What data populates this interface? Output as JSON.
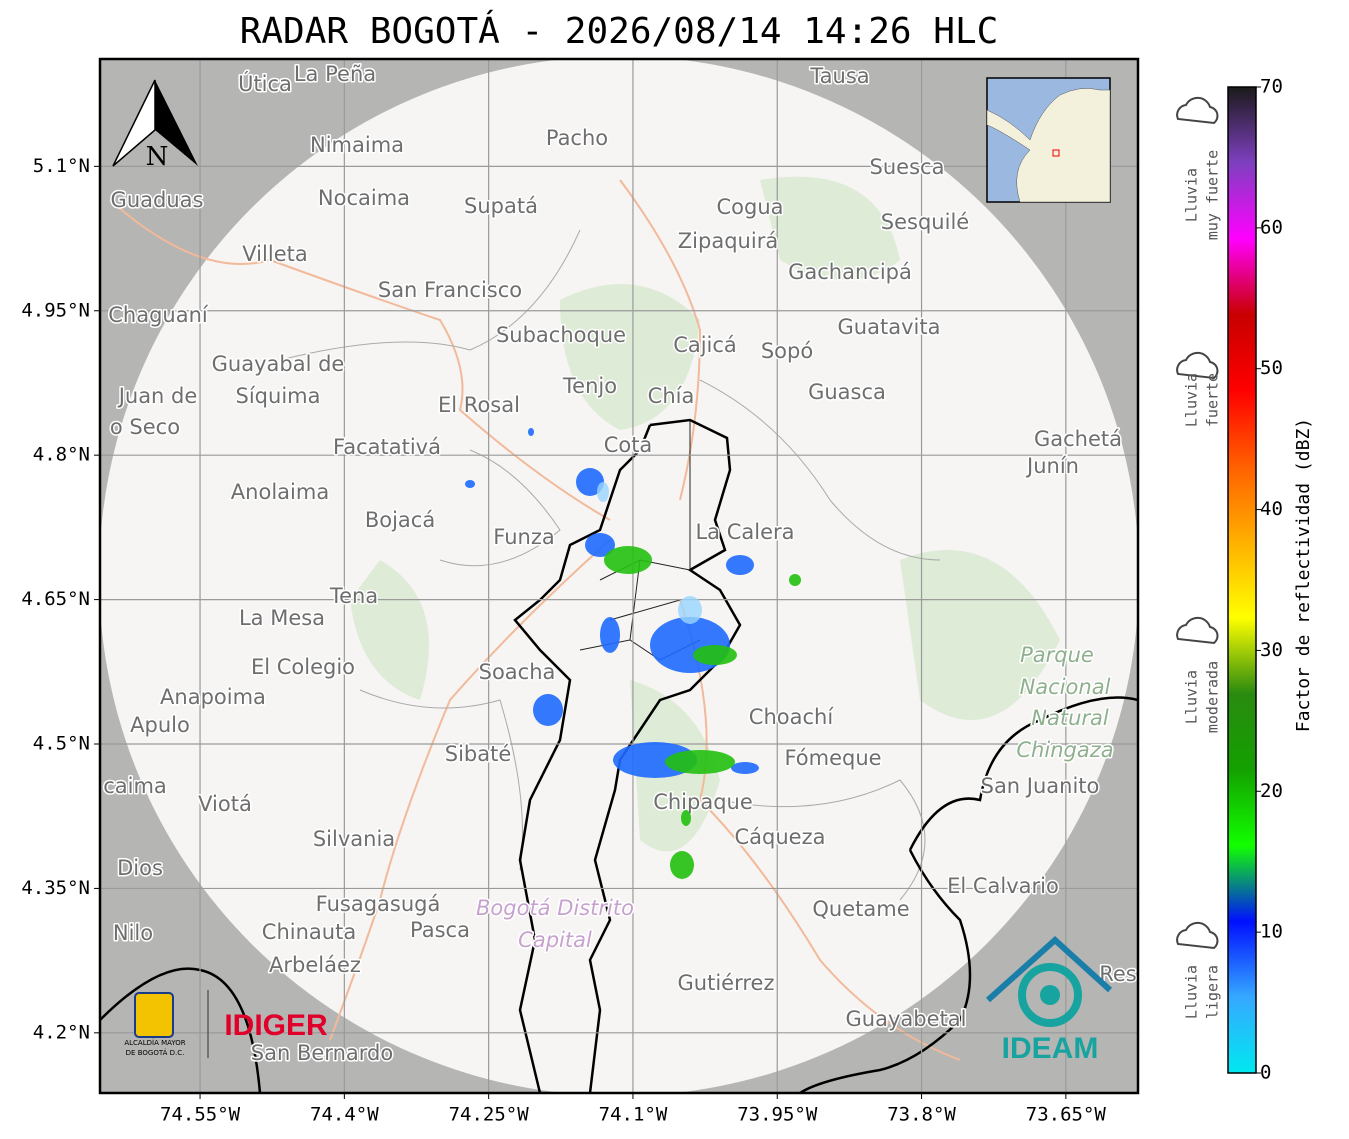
{
  "title": "RADAR BOGOTÁ - 2026/08/14 14:26 HLC",
  "map": {
    "xlim": [
      -74.654,
      -73.575
    ],
    "ylim": [
      4.1375,
      5.2115
    ],
    "grid": true,
    "xticks": [
      {
        "value": -74.55,
        "label": "74.55°W"
      },
      {
        "value": -74.4,
        "label": "74.4°W"
      },
      {
        "value": -74.25,
        "label": "74.25°W"
      },
      {
        "value": -74.1,
        "label": "74.1°W"
      },
      {
        "value": -73.95,
        "label": "73.95°W"
      },
      {
        "value": -73.8,
        "label": "73.8°W"
      },
      {
        "value": -73.65,
        "label": "73.65°W"
      }
    ],
    "yticks": [
      {
        "value": 5.1,
        "label": "5.1°N"
      },
      {
        "value": 4.95,
        "label": "4.95°N"
      },
      {
        "value": 4.8,
        "label": "4.8°N"
      },
      {
        "value": 4.65,
        "label": "4.65°N"
      },
      {
        "value": 4.5,
        "label": "4.5°N"
      },
      {
        "value": 4.35,
        "label": "4.35°N"
      },
      {
        "value": 4.2,
        "label": "4.2°N"
      }
    ],
    "places": [
      "Útica",
      "La Peña",
      "Tausa",
      "Pacho",
      "Nimaima",
      "Suesca",
      "Guaduas",
      "Nocaima",
      "Supatá",
      "Cogua",
      "Sesquilé",
      "Zipaquirá",
      "Villeta",
      "Gachancipá",
      "San Francisco",
      "Chaguaní",
      "Guatavita",
      "Subachoque",
      "Cajicá",
      "Sopó",
      "Guayabal de",
      "Síquima",
      "Tenjo",
      "Chía",
      "Guasca",
      "Juan de",
      "o Seco",
      "El Rosal",
      "Facatativá",
      "Cota",
      "Gachetá",
      "Junín",
      "Anolaima",
      "Bojacá",
      "Funza",
      "La Calera",
      "Tena",
      "La Mesa",
      "El Colegio",
      "Soacha",
      "Anapoima",
      "Apulo",
      "Choachí",
      "Sibaté",
      "Fómeque",
      "San Juanito",
      "caima",
      "Viotá",
      "Chipaque",
      "Silvania",
      "Cáqueza",
      "Dios",
      "El Calvario",
      "Fusagasugá",
      "Quetame",
      "Nilo",
      "Chinauta",
      "Pasca",
      "Arbeláez",
      "Gutiérrez",
      "Res",
      "Guayabetal",
      "San Bernardo"
    ],
    "park": [
      "Parque",
      "Nacional",
      "Natural",
      "Chingaza"
    ],
    "district": [
      "Bogotá Distrito",
      "Capital"
    ],
    "north": "N"
  },
  "colorbar": {
    "label": "Factor de reflectividad (dBZ)",
    "lim": [
      0,
      70
    ],
    "ticks": [
      0,
      10,
      20,
      30,
      40,
      50,
      60,
      70
    ],
    "colors": [
      "#00e8f0",
      "#36a8ff",
      "#0010ff",
      "#12ff00",
      "#14a000",
      "#2a8a10",
      "#ffff00",
      "#ffb000",
      "#ff6000",
      "#ff0000",
      "#c80000",
      "#ff00ff",
      "#7e40c0",
      "#1a1a1a"
    ]
  },
  "rain_legend": [
    [
      "Lluvia",
      "muy fuerte"
    ],
    [
      "Lluvia",
      "fuerte"
    ],
    [
      "Lluvia",
      "moderada"
    ],
    [
      "Lluvia",
      "ligera"
    ]
  ],
  "logos": {
    "alcaldia": [
      "ALCALDÍA MAYOR",
      "DE BOGOTÁ D.C."
    ],
    "idiger": "IDIGER",
    "ideam": "IDEAM"
  }
}
